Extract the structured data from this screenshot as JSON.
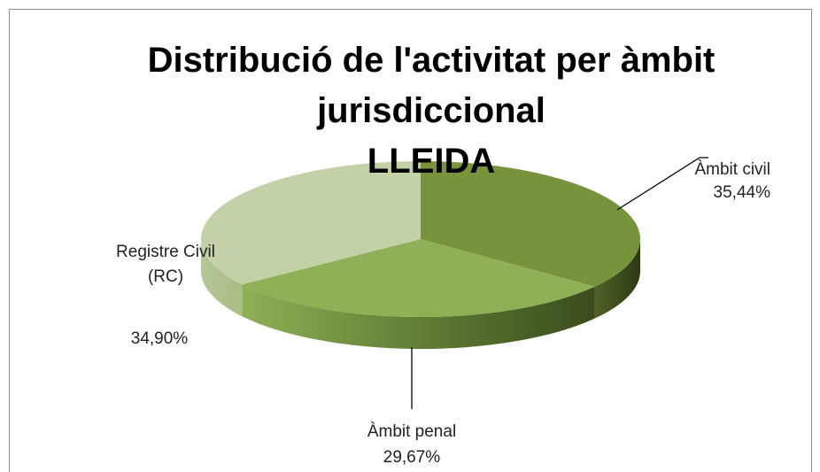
{
  "chart_data": {
    "type": "pie3d",
    "title": "Distribució de l'activitat per àmbit jurisdiccional",
    "subtitle": "LLEIDA",
    "categories": [
      "Àmbit civil",
      "Àmbit penal",
      "Registre Civil (RC)"
    ],
    "values": [
      35.44,
      29.67,
      34.9
    ],
    "value_labels": [
      "35,44%",
      "29,67%",
      "34,90%"
    ],
    "colors": [
      "#77933c",
      "#8fb055",
      "#c3d1a7"
    ]
  }
}
